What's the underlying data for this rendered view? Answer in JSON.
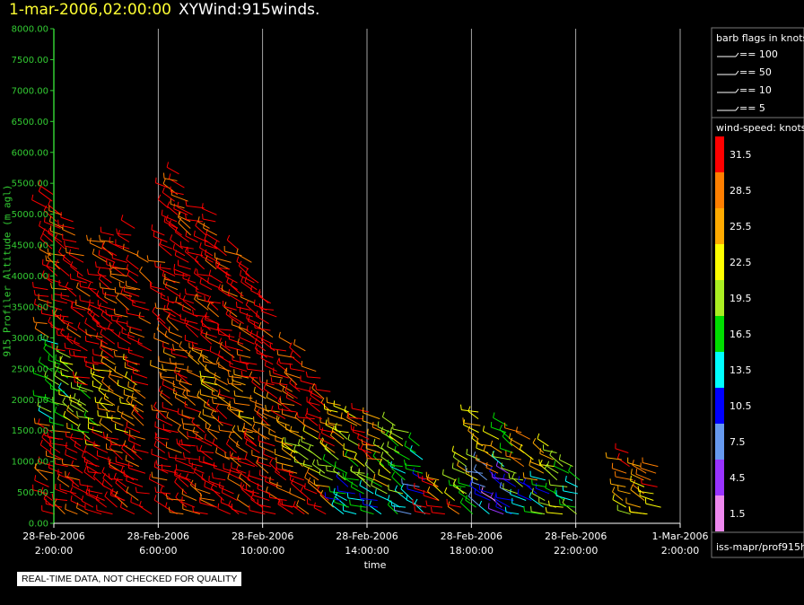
{
  "header": {
    "timestamp": "1-mar-2006,02:00:00",
    "product": "XYWind:915winds."
  },
  "footer": {
    "quality_note": "REAL-TIME DATA, NOT CHECKED FOR QUALITY",
    "source_path": "iss-mapr/prof915h"
  },
  "colors": {
    "y_axis": "#33cc33",
    "title_timestamp": "#ffff33",
    "grid": "#cccccc"
  },
  "chart_data": {
    "type": "scatter",
    "title": "XYWind:915winds.",
    "xlabel": "time",
    "ylabel": "915 Profiler Altitude (m agl)",
    "ylim": [
      0,
      8000
    ],
    "y_ticks": [
      "0.00",
      "500.00",
      "1000.00",
      "1500.00",
      "2000.00",
      "2500.00",
      "3000.00",
      "3500.00",
      "4000.00",
      "4500.00",
      "5000.00",
      "5500.00",
      "6000.00",
      "6500.00",
      "7000.00",
      "7500.00",
      "8000.00"
    ],
    "x_range_hours": [
      0,
      24
    ],
    "x_ticks": [
      {
        "hour": 0,
        "date": "28-Feb-2006",
        "time": "2:00:00"
      },
      {
        "hour": 4,
        "date": "28-Feb-2006",
        "time": "6:00:00"
      },
      {
        "hour": 8,
        "date": "28-Feb-2006",
        "time": "10:00:00"
      },
      {
        "hour": 12,
        "date": "28-Feb-2006",
        "time": "14:00:00"
      },
      {
        "hour": 16,
        "date": "28-Feb-2006",
        "time": "18:00:00"
      },
      {
        "hour": 20,
        "date": "28-Feb-2006",
        "time": "22:00:00"
      },
      {
        "hour": 24,
        "date": "1-Mar-2006",
        "time": "2:00:00"
      }
    ],
    "grid": "vertical",
    "legend_placement": "right",
    "barb_legend": {
      "title": "barb flags in knots",
      "entries": [
        {
          "label": "== 100"
        },
        {
          "label": "== 50"
        },
        {
          "label": "== 10"
        },
        {
          "label": "== 5"
        }
      ]
    },
    "speed_legend": {
      "title": "wind-speed: knots",
      "entries": [
        {
          "label": "31.5",
          "color": "#ff0000"
        },
        {
          "label": "28.5",
          "color": "#ff7f00"
        },
        {
          "label": "25.5",
          "color": "#ffaa00"
        },
        {
          "label": "22.5",
          "color": "#ffff00"
        },
        {
          "label": "19.5",
          "color": "#aaee22"
        },
        {
          "label": "16.5",
          "color": "#00dd00"
        },
        {
          "label": "13.5",
          "color": "#00ffff"
        },
        {
          "label": "10.5",
          "color": "#0000ff"
        },
        {
          "label": "7.5",
          "color": "#6699ee"
        },
        {
          "label": "4.5",
          "color": "#9933ff"
        },
        {
          "label": "1.5",
          "color": "#ee88ee"
        }
      ]
    },
    "profiles": [
      {
        "hour": 0.0,
        "top_m": 5400,
        "speed_low": 31.5,
        "speed_mid": 16.5,
        "speed_high": 31.5
      },
      {
        "hour": 0.5,
        "top_m": 5000,
        "speed_low": 31.5,
        "speed_mid": 16.5,
        "speed_high": 31.5
      },
      {
        "hour": 1.0,
        "top_m": 4800,
        "speed_low": 31.5,
        "speed_mid": 22.5,
        "speed_high": 31.5
      },
      {
        "hour": 1.5,
        "top_m": 3900,
        "speed_low": 31.5,
        "speed_mid": 19.5,
        "speed_high": 31.5
      },
      {
        "hour": 2.0,
        "top_m": 4600,
        "speed_low": 31.5,
        "speed_mid": 22.5,
        "speed_high": 31.5
      },
      {
        "hour": 2.5,
        "top_m": 4700,
        "speed_low": 31.5,
        "speed_mid": 25.5,
        "speed_high": 31.5
      },
      {
        "hour": 3.0,
        "top_m": 4800,
        "speed_low": 31.5,
        "speed_mid": 25.5,
        "speed_high": 31.5
      },
      {
        "hour": 3.5,
        "top_m": 4300,
        "speed_low": 31.5,
        "speed_mid": 28.5,
        "speed_high": 31.5
      },
      {
        "hour": 4.5,
        "top_m": 5500,
        "speed_low": 31.5,
        "speed_mid": 28.5,
        "speed_high": 31.5
      },
      {
        "hour": 5.0,
        "top_m": 5700,
        "speed_low": 31.5,
        "speed_mid": 28.5,
        "speed_high": 31.5
      },
      {
        "hour": 5.5,
        "top_m": 5200,
        "speed_low": 31.5,
        "speed_mid": 28.5,
        "speed_high": 31.5
      },
      {
        "hour": 6.0,
        "top_m": 5000,
        "speed_low": 31.5,
        "speed_mid": 25.5,
        "speed_high": 31.5
      },
      {
        "hour": 6.5,
        "top_m": 4700,
        "speed_low": 31.5,
        "speed_mid": 28.5,
        "speed_high": 31.5
      },
      {
        "hour": 7.0,
        "top_m": 4500,
        "speed_low": 31.5,
        "speed_mid": 28.5,
        "speed_high": 31.5
      },
      {
        "hour": 7.5,
        "top_m": 4300,
        "speed_low": 31.5,
        "speed_mid": 25.5,
        "speed_high": 31.5
      },
      {
        "hour": 8.0,
        "top_m": 3900,
        "speed_low": 31.5,
        "speed_mid": 28.5,
        "speed_high": 31.5
      },
      {
        "hour": 8.5,
        "top_m": 3600,
        "speed_low": 31.5,
        "speed_mid": 28.5,
        "speed_high": 31.5
      },
      {
        "hour": 9.0,
        "top_m": 2900,
        "speed_low": 31.5,
        "speed_mid": 25.5,
        "speed_high": 31.5
      },
      {
        "hour": 9.5,
        "top_m": 2800,
        "speed_low": 31.5,
        "speed_mid": 22.5,
        "speed_high": 31.5
      },
      {
        "hour": 10.0,
        "top_m": 2500,
        "speed_low": 31.5,
        "speed_mid": 22.5,
        "speed_high": 31.5
      },
      {
        "hour": 10.5,
        "top_m": 2200,
        "speed_low": 28.5,
        "speed_mid": 19.5,
        "speed_high": 31.5
      },
      {
        "hour": 11.0,
        "top_m": 2000,
        "speed_low": 13.5,
        "speed_mid": 19.5,
        "speed_high": 25.5
      },
      {
        "hour": 11.5,
        "top_m": 1800,
        "speed_low": 13.5,
        "speed_mid": 16.5,
        "speed_high": 22.5
      },
      {
        "hour": 12.0,
        "top_m": 1800,
        "speed_low": 13.5,
        "speed_mid": 19.5,
        "speed_high": 31.5
      },
      {
        "hour": 12.5,
        "top_m": 1700,
        "speed_low": 10.5,
        "speed_mid": 19.5,
        "speed_high": 25.5
      },
      {
        "hour": 13.0,
        "top_m": 1600,
        "speed_low": 13.5,
        "speed_mid": 22.5,
        "speed_high": 19.5
      },
      {
        "hour": 13.5,
        "top_m": 1500,
        "speed_low": 10.5,
        "speed_mid": 16.5,
        "speed_high": 19.5
      },
      {
        "hour": 14.0,
        "top_m": 1300,
        "speed_low": 13.5,
        "speed_mid": 10.5,
        "speed_high": 16.5
      },
      {
        "hour": 14.5,
        "top_m": 700,
        "speed_low": 31.5,
        "speed_mid": 31.5,
        "speed_high": 31.5
      },
      {
        "hour": 15.0,
        "top_m": 800,
        "speed_low": 31.5,
        "speed_mid": 28.5,
        "speed_high": 25.5
      },
      {
        "hour": 15.5,
        "top_m": 900,
        "speed_low": 31.5,
        "speed_mid": 25.5,
        "speed_high": 19.5
      },
      {
        "hour": 16.0,
        "top_m": 1100,
        "speed_low": 16.5,
        "speed_mid": 19.5,
        "speed_high": 22.5
      },
      {
        "hour": 16.5,
        "top_m": 1800,
        "speed_low": 10.5,
        "speed_mid": 7.5,
        "speed_high": 22.5
      },
      {
        "hour": 17.0,
        "top_m": 1400,
        "speed_low": 4.5,
        "speed_mid": 10.5,
        "speed_high": 25.5
      },
      {
        "hour": 17.5,
        "top_m": 1600,
        "speed_low": 10.5,
        "speed_mid": 7.5,
        "speed_high": 16.5
      },
      {
        "hour": 18.0,
        "top_m": 1500,
        "speed_low": 13.5,
        "speed_mid": 19.5,
        "speed_high": 28.5
      },
      {
        "hour": 18.5,
        "top_m": 1200,
        "speed_low": 16.5,
        "speed_mid": 10.5,
        "speed_high": 25.5
      },
      {
        "hour": 19.0,
        "top_m": 1300,
        "speed_low": 19.5,
        "speed_mid": 13.5,
        "speed_high": 22.5
      },
      {
        "hour": 19.5,
        "top_m": 1000,
        "speed_low": 22.5,
        "speed_mid": 16.5,
        "speed_high": 19.5
      },
      {
        "hour": 20.0,
        "top_m": 1000,
        "speed_low": 19.5,
        "speed_mid": 13.5,
        "speed_high": 16.5
      },
      {
        "hour": 22.0,
        "top_m": 1200,
        "speed_low": 22.5,
        "speed_mid": 25.5,
        "speed_high": 28.5
      },
      {
        "hour": 22.5,
        "top_m": 1000,
        "speed_low": 25.5,
        "speed_mid": 28.5,
        "speed_high": 25.5
      },
      {
        "hour": 23.0,
        "top_m": 1000,
        "speed_low": 22.5,
        "speed_mid": 25.5,
        "speed_high": 28.5
      }
    ]
  }
}
